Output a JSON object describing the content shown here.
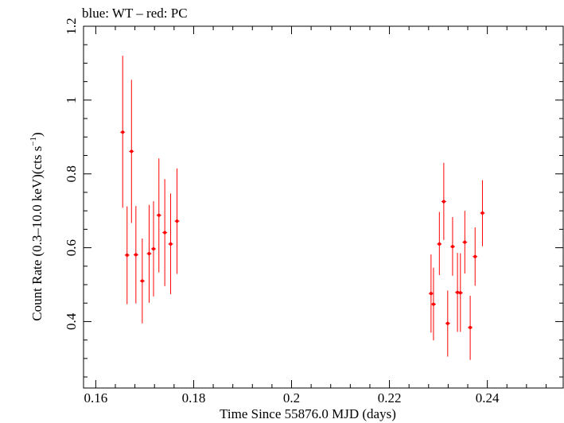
{
  "chart_data": {
    "type": "scatter",
    "title": "blue: WT – red: PC",
    "xlabel": "Time Since 55876.0 MJD (days)",
    "ylabel_main": "Count Rate (0.3–10.0 keV)(cts s",
    "ylabel_sup": "−1",
    "ylabel_end": ")",
    "xlim": [
      0.1575,
      0.2555
    ],
    "ylim": [
      0.22,
      1.2
    ],
    "xticks": [
      0.16,
      0.18,
      0.2,
      0.22,
      0.24
    ],
    "xtick_labels": [
      "0.16",
      "0.18",
      "0.2",
      "0.22",
      "0.24"
    ],
    "yticks": [
      0.4,
      0.6,
      0.8,
      1.0,
      1.2
    ],
    "ytick_labels": [
      "0.4",
      "0.6",
      "0.8",
      "1",
      "1.2"
    ],
    "grid": false,
    "series": [
      {
        "color": "#ff0000",
        "points": [
          {
            "x": 0.1655,
            "y": 0.913,
            "ylo": 0.708,
            "yhi": 1.12
          },
          {
            "x": 0.1664,
            "y": 0.58,
            "ylo": 0.447,
            "yhi": 0.712
          },
          {
            "x": 0.1673,
            "y": 0.861,
            "ylo": 0.667,
            "yhi": 1.055
          },
          {
            "x": 0.1682,
            "y": 0.581,
            "ylo": 0.449,
            "yhi": 0.713
          },
          {
            "x": 0.1695,
            "y": 0.51,
            "ylo": 0.395,
            "yhi": 0.625
          },
          {
            "x": 0.1709,
            "y": 0.584,
            "ylo": 0.451,
            "yhi": 0.716
          },
          {
            "x": 0.1718,
            "y": 0.597,
            "ylo": 0.468,
            "yhi": 0.726
          },
          {
            "x": 0.1729,
            "y": 0.688,
            "ylo": 0.533,
            "yhi": 0.842
          },
          {
            "x": 0.1741,
            "y": 0.641,
            "ylo": 0.496,
            "yhi": 0.786
          },
          {
            "x": 0.1753,
            "y": 0.61,
            "ylo": 0.474,
            "yhi": 0.747
          },
          {
            "x": 0.1766,
            "y": 0.672,
            "ylo": 0.529,
            "yhi": 0.815
          },
          {
            "x": 0.2285,
            "y": 0.476,
            "ylo": 0.37,
            "yhi": 0.582
          },
          {
            "x": 0.229,
            "y": 0.447,
            "ylo": 0.349,
            "yhi": 0.546
          },
          {
            "x": 0.2302,
            "y": 0.61,
            "ylo": 0.526,
            "yhi": 0.697
          },
          {
            "x": 0.2311,
            "y": 0.725,
            "ylo": 0.621,
            "yhi": 0.83
          },
          {
            "x": 0.2319,
            "y": 0.395,
            "ylo": 0.305,
            "yhi": 0.484
          },
          {
            "x": 0.2329,
            "y": 0.603,
            "ylo": 0.524,
            "yhi": 0.683
          },
          {
            "x": 0.2339,
            "y": 0.479,
            "ylo": 0.372,
            "yhi": 0.586
          },
          {
            "x": 0.2345,
            "y": 0.478,
            "ylo": 0.372,
            "yhi": 0.585
          },
          {
            "x": 0.2354,
            "y": 0.615,
            "ylo": 0.53,
            "yhi": 0.7
          },
          {
            "x": 0.2365,
            "y": 0.384,
            "ylo": 0.296,
            "yhi": 0.47
          },
          {
            "x": 0.2375,
            "y": 0.576,
            "ylo": 0.497,
            "yhi": 0.655
          },
          {
            "x": 0.239,
            "y": 0.694,
            "ylo": 0.604,
            "yhi": 0.783
          }
        ]
      }
    ]
  }
}
